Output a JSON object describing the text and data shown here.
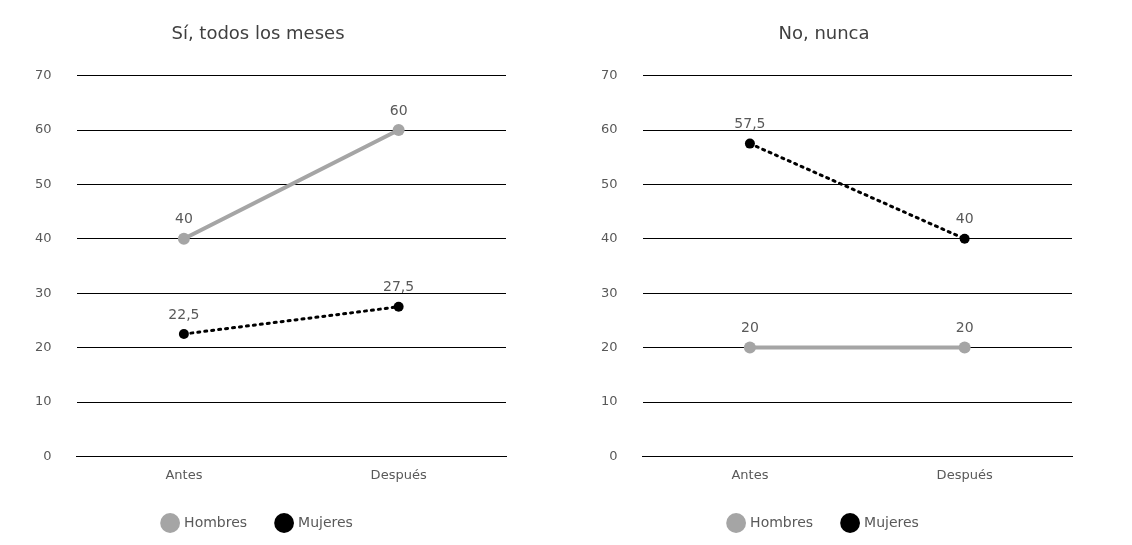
{
  "chart_data": [
    {
      "type": "line",
      "title": "Sí, todos los meses",
      "categories": [
        "Antes",
        "Después"
      ],
      "ylim": [
        0,
        70
      ],
      "yticks": [
        0,
        10,
        20,
        30,
        40,
        50,
        60,
        70
      ],
      "grid": "y",
      "legend": "bottom",
      "marker": "circle",
      "series": [
        {
          "name": "Hombres",
          "color": "#a5a5a5",
          "values": [
            40,
            60
          ],
          "value_labels": [
            "40",
            "60"
          ],
          "line_style": "solid"
        },
        {
          "name": "Mujeres",
          "color": "#000000",
          "values": [
            22.5,
            27.5
          ],
          "value_labels": [
            "22,5",
            "27,5"
          ],
          "line_style": "dotted"
        }
      ]
    },
    {
      "type": "line",
      "title": "No, nunca",
      "categories": [
        "Antes",
        "Después"
      ],
      "ylim": [
        0,
        70
      ],
      "yticks": [
        0,
        10,
        20,
        30,
        40,
        50,
        60,
        70
      ],
      "grid": "y",
      "legend": "bottom",
      "marker": "circle",
      "series": [
        {
          "name": "Hombres",
          "color": "#a5a5a5",
          "values": [
            20,
            20
          ],
          "value_labels": [
            "20",
            "20"
          ],
          "line_style": "solid"
        },
        {
          "name": "Mujeres",
          "color": "#000000",
          "values": [
            57.5,
            40
          ],
          "value_labels": [
            "57,5",
            "40"
          ],
          "line_style": "dotted"
        }
      ]
    }
  ]
}
